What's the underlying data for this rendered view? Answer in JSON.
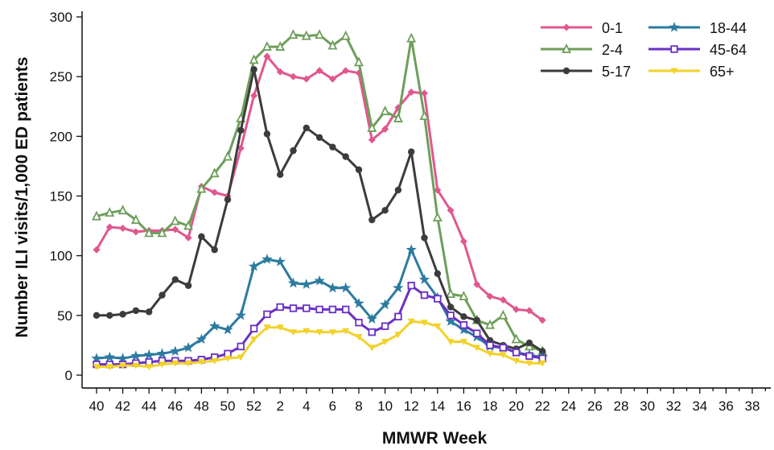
{
  "chart_data": {
    "type": "line",
    "title": "",
    "xlabel": "MMWR Week",
    "ylabel": "Number ILI visits/1,000 ED patients",
    "ylim": [
      0,
      300
    ],
    "yticks": [
      0,
      50,
      100,
      150,
      200,
      250,
      300
    ],
    "x_weeks": [
      40,
      41,
      42,
      43,
      44,
      45,
      46,
      47,
      48,
      49,
      50,
      51,
      52,
      1,
      2,
      3,
      4,
      5,
      6,
      7,
      8,
      9,
      10,
      11,
      12,
      13,
      14,
      15,
      16,
      17,
      18,
      19,
      20,
      21,
      22,
      23,
      24,
      25,
      26,
      27,
      28,
      29,
      30,
      31,
      32,
      33,
      34,
      35,
      36,
      37,
      38,
      39
    ],
    "x_tick_labels": [
      "40",
      "42",
      "44",
      "46",
      "48",
      "50",
      "52",
      "2",
      "4",
      "6",
      "8",
      "10",
      "12",
      "14",
      "16",
      "18",
      "20",
      "22",
      "24",
      "26",
      "28",
      "30",
      "32",
      "34",
      "36",
      "38"
    ],
    "legend_position": "top-right",
    "grid": false,
    "series": [
      {
        "name": "0-1",
        "color": "#e0578f",
        "marker": "diamond",
        "values": [
          105,
          124,
          123,
          120,
          121,
          121,
          122,
          115,
          158,
          153,
          150,
          190,
          234,
          267,
          254,
          250,
          248,
          255,
          248,
          255,
          253,
          197,
          206,
          224,
          237,
          236,
          155,
          138,
          112,
          76,
          66,
          63,
          55,
          54,
          46
        ]
      },
      {
        "name": "2-4",
        "color": "#6e9e5a",
        "marker": "triangle",
        "values": [
          133,
          136,
          138,
          130,
          119,
          119,
          129,
          125,
          156,
          169,
          183,
          215,
          264,
          275,
          275,
          285,
          284,
          285,
          276,
          284,
          262,
          207,
          221,
          215,
          282,
          217,
          132,
          68,
          66,
          46,
          42,
          50,
          30,
          24,
          20
        ]
      },
      {
        "name": "5-17",
        "color": "#3c3c3c",
        "marker": "circle",
        "values": [
          50,
          50,
          51,
          54,
          53,
          67,
          80,
          75,
          116,
          105,
          147,
          205,
          256,
          202,
          168,
          188,
          207,
          199,
          191,
          183,
          172,
          130,
          138,
          155,
          187,
          115,
          85,
          57,
          49,
          46,
          29,
          25,
          22,
          27,
          20
        ]
      },
      {
        "name": "18-44",
        "color": "#2c7ba0",
        "marker": "star",
        "values": [
          14,
          15,
          14,
          16,
          17,
          18,
          20,
          23,
          30,
          41,
          38,
          50,
          91,
          97,
          95,
          77,
          76,
          79,
          73,
          73,
          60,
          47,
          59,
          73,
          105,
          80,
          65,
          45,
          38,
          32,
          24,
          23,
          19,
          17,
          15
        ]
      },
      {
        "name": "45-64",
        "color": "#6a2fc4",
        "marker": "square",
        "values": [
          9,
          9,
          9,
          10,
          11,
          12,
          12,
          12,
          13,
          15,
          18,
          24,
          39,
          51,
          57,
          56,
          56,
          55,
          55,
          55,
          44,
          36,
          41,
          49,
          75,
          67,
          64,
          50,
          42,
          35,
          25,
          23,
          19,
          16,
          14
        ]
      },
      {
        "name": "65+",
        "color": "#f2d22c",
        "marker": "tri-down",
        "values": [
          7,
          7,
          8,
          8,
          7,
          9,
          10,
          10,
          11,
          12,
          14,
          15,
          30,
          40,
          40,
          36,
          37,
          36,
          36,
          37,
          32,
          23,
          28,
          34,
          45,
          44,
          41,
          28,
          28,
          23,
          18,
          17,
          12,
          10,
          10
        ]
      }
    ]
  }
}
